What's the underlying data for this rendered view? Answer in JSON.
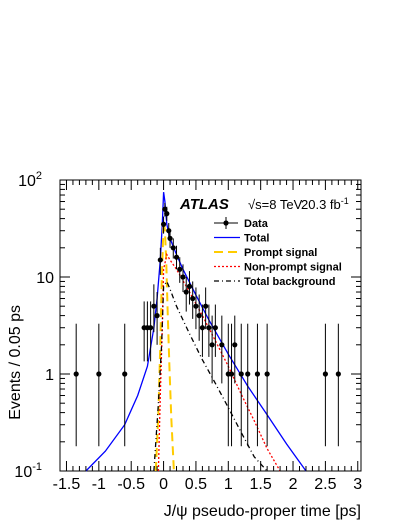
{
  "chart_data": {
    "type": "scatter",
    "xlabel": "J/ψ pseudo-proper time [ps]",
    "ylabel": "Events / 0.05 ps",
    "xlim": [
      -1.6,
      3.05
    ],
    "ylim": [
      0.1,
      100
    ],
    "yscale": "log",
    "x_ticks": [
      "-1.5",
      "-1",
      "-0.5",
      "0",
      "0.5",
      "1",
      "1.5",
      "2",
      "2.5",
      "3"
    ],
    "x_tick_values": [
      -1.5,
      -1,
      -0.5,
      0,
      0.5,
      1,
      1.5,
      2,
      2.5,
      3
    ],
    "y_ticks": [
      {
        "value": 0.1,
        "base": "10",
        "exp": "-1"
      },
      {
        "value": 1,
        "base": "1",
        "exp": ""
      },
      {
        "value": 10,
        "base": "10",
        "exp": ""
      },
      {
        "value": 100,
        "base": "10",
        "exp": "2"
      }
    ],
    "annotations": {
      "experiment": "ATLAS",
      "energy": "√s=8 TeV",
      "lumi_base": "20.3 fb",
      "lumi_exp": "-1"
    },
    "legend": [
      {
        "label": "Data",
        "style": "marker",
        "color": "#000000"
      },
      {
        "label": "Total",
        "style": "solid",
        "color": "#0000ff"
      },
      {
        "label": "Prompt signal",
        "style": "dashed",
        "color": "#ffcc00"
      },
      {
        "label": "Non-prompt signal",
        "style": "dotted",
        "color": "#ff0000"
      },
      {
        "label": "Total background",
        "style": "dashdot",
        "color": "#000000"
      }
    ],
    "data_points": [
      {
        "x": -1.35,
        "y": 1,
        "lo": 0.18,
        "hi": 3.3
      },
      {
        "x": -1.0,
        "y": 1,
        "lo": 0.18,
        "hi": 3.3
      },
      {
        "x": -0.6,
        "y": 1,
        "lo": 0.18,
        "hi": 3.3
      },
      {
        "x": -0.3,
        "y": 3,
        "lo": 1.35,
        "hi": 5.6
      },
      {
        "x": -0.25,
        "y": 3,
        "lo": 1.35,
        "hi": 5.6
      },
      {
        "x": -0.2,
        "y": 3,
        "lo": 1.35,
        "hi": 5.6
      },
      {
        "x": -0.15,
        "y": 5,
        "lo": 2.7,
        "hi": 8.4
      },
      {
        "x": -0.1,
        "y": 4,
        "lo": 2.0,
        "hi": 7.0
      },
      {
        "x": -0.05,
        "y": 15,
        "lo": 10.5,
        "hi": 20
      },
      {
        "x": 0.0,
        "y": 35,
        "lo": 28,
        "hi": 42
      },
      {
        "x": 0.02,
        "y": 50,
        "lo": 42,
        "hi": 58
      },
      {
        "x": 0.05,
        "y": 45,
        "lo": 38,
        "hi": 53
      },
      {
        "x": 0.08,
        "y": 30,
        "lo": 24.5,
        "hi": 36
      },
      {
        "x": 0.1,
        "y": 25,
        "lo": 20,
        "hi": 31
      },
      {
        "x": 0.15,
        "y": 20,
        "lo": 15.5,
        "hi": 25
      },
      {
        "x": 0.2,
        "y": 16,
        "lo": 12,
        "hi": 21
      },
      {
        "x": 0.25,
        "y": 12,
        "lo": 8.7,
        "hi": 16
      },
      {
        "x": 0.3,
        "y": 10,
        "lo": 7,
        "hi": 13.5
      },
      {
        "x": 0.35,
        "y": 7,
        "lo": 4.4,
        "hi": 10
      },
      {
        "x": 0.4,
        "y": 8,
        "lo": 5.2,
        "hi": 11.5
      },
      {
        "x": 0.45,
        "y": 6,
        "lo": 3.7,
        "hi": 9
      },
      {
        "x": 0.5,
        "y": 5,
        "lo": 2.9,
        "hi": 7.8
      },
      {
        "x": 0.55,
        "y": 4,
        "lo": 2.2,
        "hi": 6.6
      },
      {
        "x": 0.6,
        "y": 3,
        "lo": 1.5,
        "hi": 5.2
      },
      {
        "x": 0.65,
        "y": 5,
        "lo": 2.9,
        "hi": 7.8
      },
      {
        "x": 0.7,
        "y": 3,
        "lo": 1.5,
        "hi": 5.2
      },
      {
        "x": 0.75,
        "y": 2,
        "lo": 0.8,
        "hi": 4
      },
      {
        "x": 0.8,
        "y": 3,
        "lo": 1.5,
        "hi": 5.2
      },
      {
        "x": 0.9,
        "y": 2,
        "lo": 0.8,
        "hi": 4
      },
      {
        "x": 1.0,
        "y": 1,
        "lo": 0.18,
        "hi": 3.3
      },
      {
        "x": 1.05,
        "y": 1,
        "lo": 0.18,
        "hi": 3.3
      },
      {
        "x": 1.1,
        "y": 2,
        "lo": 0.8,
        "hi": 4
      },
      {
        "x": 1.2,
        "y": 1,
        "lo": 0.18,
        "hi": 3.3
      },
      {
        "x": 1.3,
        "y": 1,
        "lo": 0.18,
        "hi": 3.3
      },
      {
        "x": 1.45,
        "y": 1,
        "lo": 0.18,
        "hi": 3.3
      },
      {
        "x": 1.6,
        "y": 1,
        "lo": 0.18,
        "hi": 3.3
      },
      {
        "x": 2.5,
        "y": 1,
        "lo": 0.18,
        "hi": 3.3
      },
      {
        "x": 2.7,
        "y": 1,
        "lo": 0.18,
        "hi": 3.3
      }
    ],
    "curves": [
      {
        "name": "Total",
        "color": "#0000ff",
        "style": "solid",
        "x": [
          -1.2,
          -0.9,
          -0.6,
          -0.4,
          -0.25,
          -0.15,
          -0.1,
          -0.05,
          -0.02,
          0.0,
          0.02,
          0.05,
          0.1,
          0.2,
          0.3,
          0.5,
          0.7,
          1.0,
          1.3,
          1.6,
          1.9,
          2.2
        ],
        "y": [
          0.1,
          0.16,
          0.3,
          0.6,
          1.2,
          3,
          6,
          15,
          35,
          75,
          60,
          35,
          25,
          17,
          12,
          6.5,
          3.6,
          1.6,
          0.75,
          0.38,
          0.19,
          0.1
        ]
      },
      {
        "name": "Prompt signal",
        "color": "#ffcc00",
        "style": "dashed",
        "x": [
          -0.12,
          -0.08,
          -0.05,
          -0.03,
          -0.01,
          0.0,
          0.02,
          0.04,
          0.06,
          0.09,
          0.12,
          0.16
        ],
        "y": [
          0.1,
          0.4,
          2,
          8,
          22,
          38,
          30,
          15,
          5,
          1.2,
          0.35,
          0.1
        ]
      },
      {
        "name": "Non-prompt signal",
        "color": "#ff0000",
        "style": "dotted",
        "x": [
          -0.08,
          -0.05,
          -0.02,
          0.0,
          0.05,
          0.1,
          0.2,
          0.4,
          0.6,
          0.8,
          1.0,
          1.2,
          1.4,
          1.6,
          1.8
        ],
        "y": [
          0.1,
          0.6,
          3,
          12,
          17,
          15,
          12,
          7,
          4,
          2.2,
          1.2,
          0.62,
          0.33,
          0.17,
          0.1
        ]
      },
      {
        "name": "Total background",
        "color": "#000000",
        "style": "dashdot",
        "x": [
          -0.15,
          -0.08,
          -0.03,
          0.0,
          0.05,
          0.1,
          0.2,
          0.4,
          0.6,
          0.8,
          1.0,
          1.2,
          1.4,
          1.6
        ],
        "y": [
          0.1,
          0.5,
          2,
          8,
          9,
          7.5,
          5,
          2.6,
          1.4,
          0.8,
          0.45,
          0.25,
          0.14,
          0.1
        ]
      }
    ]
  }
}
